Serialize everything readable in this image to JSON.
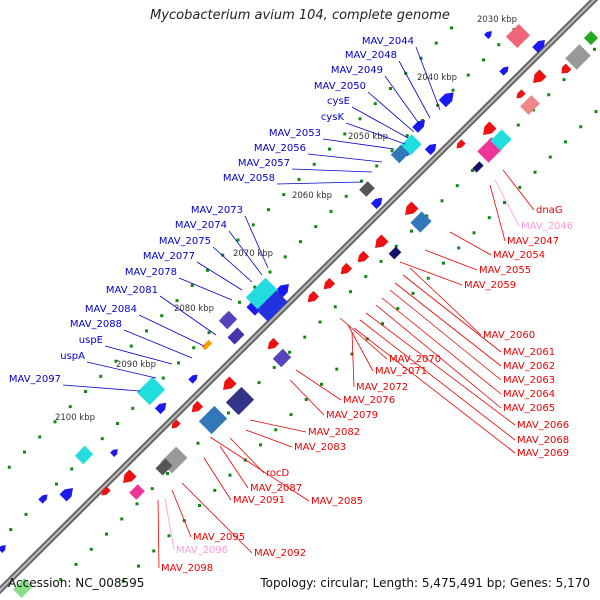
{
  "title": "Mycobacterium avium 104, complete genome",
  "footer": {
    "accession": "Accession: NC_008595",
    "topology": "Topology: circular;",
    "length": "Length: 5,475,491 bp;",
    "genes": "Genes: 5,170"
  },
  "colors": {
    "backbone": "#808080",
    "forward_label": "#0000cc",
    "reverse_label": "#ee0000",
    "pseudo_label": "#ff99dd",
    "tick": "#118811",
    "forward_gene": "#1a1aee",
    "reverse_gene": "#ee1111",
    "cds_cyan": "#22dddd",
    "cds_slate": "#5544bb",
    "cds_orange": "#ff9900",
    "cds_grey": "#999999"
  },
  "scale_labels": [
    "2030 kbp",
    "2040 kbp",
    "2050 kbp",
    "2060 kbp",
    "2070 kbp",
    "2080 kbp",
    "2090 kbp",
    "2100 kbp"
  ],
  "forward_labels": [
    "MAV_2044",
    "MAV_2048",
    "MAV_2049",
    "MAV_2050",
    "cysE",
    "cysK",
    "MAV_2053",
    "MAV_2056",
    "MAV_2057",
    "MAV_2058",
    "MAV_2073",
    "MAV_2074",
    "MAV_2075",
    "MAV_2077",
    "MAV_2078",
    "MAV_2081",
    "MAV_2084",
    "MAV_2088",
    "uspE",
    "uspA",
    "MAV_2097"
  ],
  "reverse_labels": [
    "dnaG",
    "MAV_2046",
    "MAV_2047",
    "MAV_2054",
    "MAV_2055",
    "MAV_2059",
    "MAV_2060",
    "MAV_2061",
    "MAV_2062",
    "MAV_2063",
    "MAV_2064",
    "MAV_2065",
    "MAV_2066",
    "MAV_2068",
    "MAV_2069",
    "MAV_2070",
    "MAV_2071",
    "MAV_2072",
    "MAV_2076",
    "MAV_2079",
    "MAV_2082",
    "MAV_2083",
    "rocD",
    "MAV_2087",
    "MAV_2085",
    "MAV_2091",
    "MAV_2095",
    "MAV_2092",
    "MAV_2096",
    "MAV_2098"
  ],
  "pseudo_labels": [
    "MAV_2046",
    "MAV_2096"
  ]
}
